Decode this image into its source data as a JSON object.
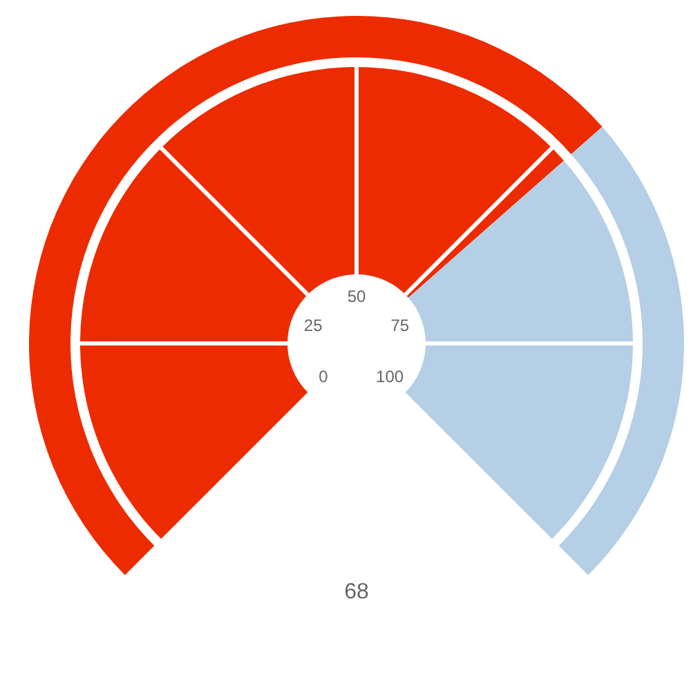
{
  "chart_data": [
    {
      "type": "donut",
      "categories": [
        null,
        null
      ],
      "values": [
        68,
        32
      ],
      "colors": [
        "#ec2c00",
        "#b4cfe6"
      ],
      "annotations": [
        "68"
      ]
    },
    {
      "type": "donut",
      "categories": [
        null,
        null
      ],
      "values": [
        68,
        32
      ],
      "colors": [
        "#ec2c00",
        "#b4cfe6"
      ],
      "annotations": [
        "0",
        "25",
        "50",
        "75",
        "100"
      ]
    }
  ]
}
